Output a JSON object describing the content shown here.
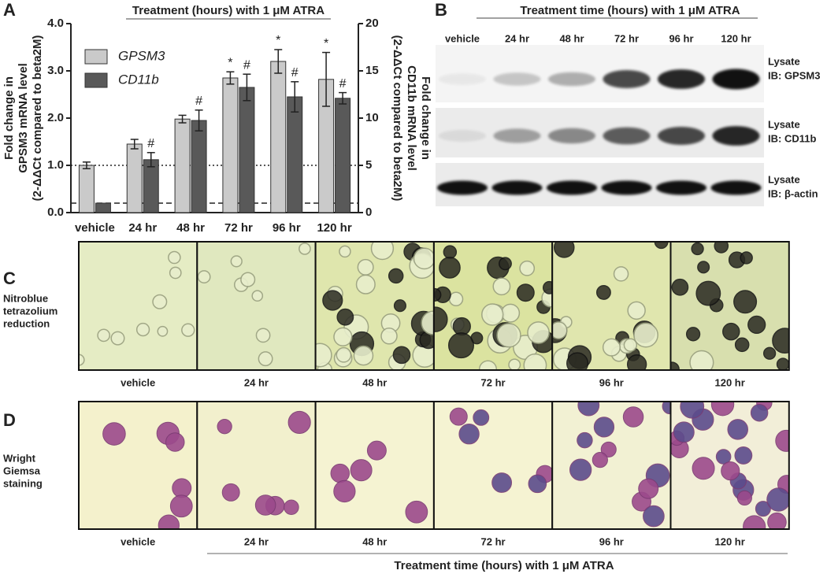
{
  "chart_data": {
    "type": "bar",
    "panel": "A",
    "title": "Treatment (hours) with 1 μM ATRA",
    "categories": [
      "vehicle",
      "24 hr",
      "48 hr",
      "72 hr",
      "96 hr",
      "120 hr"
    ],
    "ylabel": [
      "Fold change in",
      "GPSM3 mRNA level",
      "(2-ΔΔCt compared to beta2M)"
    ],
    "y2label": [
      "Fold change in",
      "CD11b mRNA level",
      "(2-ΔΔCt compared to beta2M)"
    ],
    "ylim": [
      0,
      4
    ],
    "yticks": [
      {
        "value": 0,
        "label": "0.0"
      },
      {
        "value": 1,
        "label": "1.0"
      },
      {
        "value": 2,
        "label": "2.0"
      },
      {
        "value": 3,
        "label": "3.0"
      },
      {
        "value": 4,
        "label": "4.0"
      }
    ],
    "y2lim": [
      0,
      20
    ],
    "y2ticks": [
      0,
      5,
      10,
      15,
      20
    ],
    "series": [
      {
        "name": "GPSM3",
        "color": "#cacaca",
        "values": [
          1.0,
          1.45,
          1.98,
          2.85,
          3.2,
          2.82
        ],
        "errors": [
          0.07,
          0.1,
          0.08,
          0.13,
          0.25,
          0.57
        ],
        "markers": [
          null,
          null,
          null,
          "*",
          "*",
          "*"
        ]
      },
      {
        "name": "CD11b",
        "color": "#595959",
        "axis": "y2",
        "values": [
          1.0,
          5.6,
          9.75,
          13.25,
          12.25,
          12.1
        ],
        "errors": [
          null,
          0.75,
          1.1,
          1.4,
          1.6,
          0.6
        ],
        "markers": [
          null,
          "#",
          "#",
          "#",
          "#",
          "#"
        ]
      }
    ],
    "reference_lines": [
      {
        "value": 1,
        "style": "dotted"
      },
      {
        "value": 0.2,
        "style": "dashed"
      }
    ],
    "legend": "upper left"
  },
  "panel_b": {
    "label": "B",
    "title": "Treatment time (hours) with 1 μM ATRA",
    "lanes": [
      "vehicle",
      "24 hr",
      "48 hr",
      "72 hr",
      "96 hr",
      "120 hr"
    ],
    "rows": [
      [
        "Lysate",
        "IB: GPSM3"
      ],
      [
        "Lysate",
        "IB: CD11b"
      ],
      [
        "Lysate",
        "IB: β-actin"
      ]
    ]
  },
  "panel_c": {
    "label": "C",
    "description": [
      "Nitroblue",
      "tetrazolium",
      "reduction"
    ],
    "captions": [
      "vehicle",
      "24 hr",
      "48 hr",
      "72 hr",
      "96 hr",
      "120 hr"
    ]
  },
  "panel_d": {
    "label": "D",
    "description": [
      "Wright",
      "Giemsa",
      "staining"
    ],
    "captions": [
      "vehicle",
      "24 hr",
      "48 hr",
      "72 hr",
      "96 hr",
      "120 hr"
    ],
    "footer": "Treatment time (hours) with 1 μM ATRA"
  }
}
